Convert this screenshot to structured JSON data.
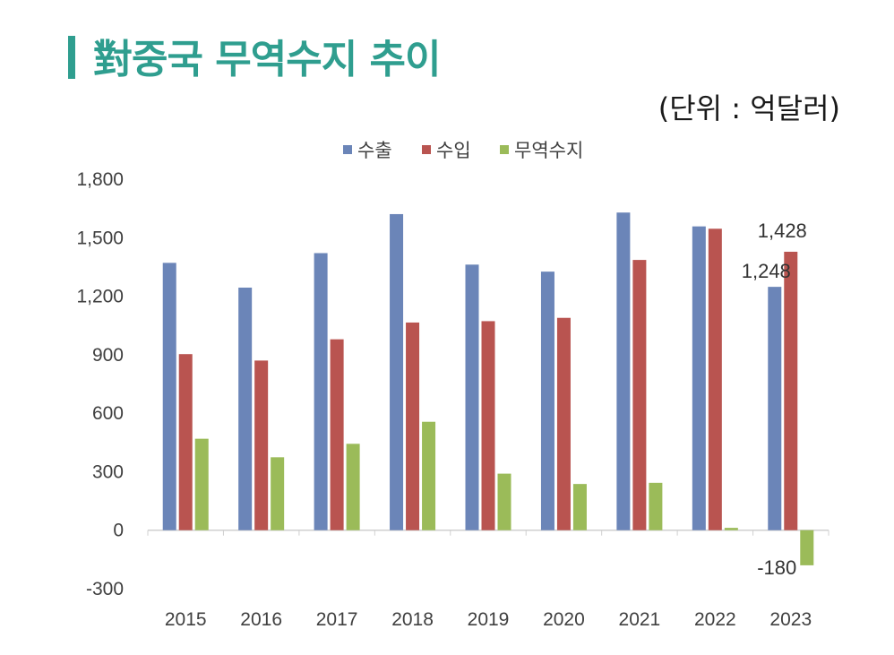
{
  "header": {
    "title": "對중국 무역수지 추이",
    "unit": "(단위 : 억달러)"
  },
  "chart_data": {
    "type": "bar",
    "title": "",
    "xlabel": "",
    "ylabel": "",
    "categories": [
      "2015",
      "2016",
      "2017",
      "2018",
      "2019",
      "2020",
      "2021",
      "2022",
      "2023"
    ],
    "ylim": [
      -300,
      1800
    ],
    "yticks": [
      -300,
      0,
      300,
      600,
      900,
      1200,
      1500,
      1800
    ],
    "ytick_labels": [
      "-300",
      "0",
      "300",
      "600",
      "900",
      "1,200",
      "1,500",
      "1,800"
    ],
    "legend_position": "top-center",
    "grid": false,
    "series": [
      {
        "name": "수출",
        "color": "#6b85b8",
        "values": [
          1371,
          1244,
          1421,
          1621,
          1362,
          1326,
          1629,
          1558,
          1248
        ]
      },
      {
        "name": "수입",
        "color": "#b95450",
        "values": [
          903,
          870,
          979,
          1065,
          1072,
          1089,
          1386,
          1546,
          1428
        ]
      },
      {
        "name": "무역수지",
        "color": "#9bbb59",
        "values": [
          469,
          374,
          443,
          556,
          290,
          237,
          243,
          12,
          -180
        ]
      }
    ],
    "data_labels": [
      {
        "series": 0,
        "index": 8,
        "text": "1,248"
      },
      {
        "series": 1,
        "index": 8,
        "text": "1,428"
      },
      {
        "series": 2,
        "index": 8,
        "text": "-180"
      }
    ]
  }
}
